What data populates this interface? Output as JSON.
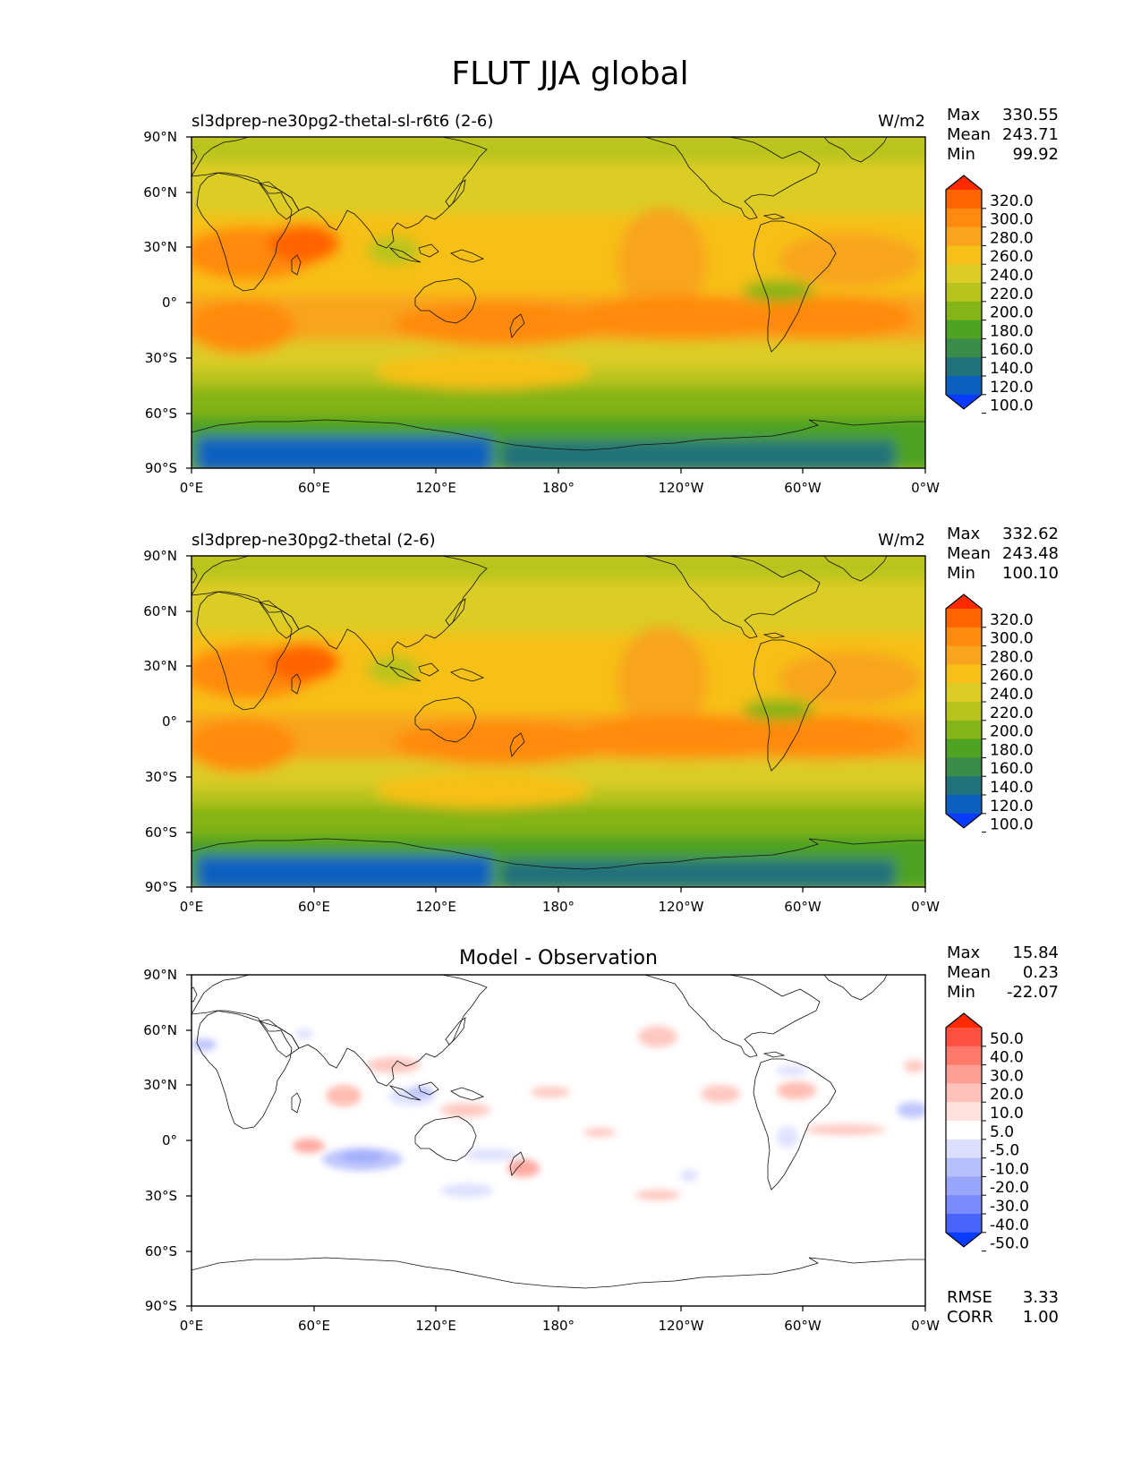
{
  "figure_title": "FLUT JJA global",
  "chart_data": [
    {
      "type": "heatmap",
      "title_left": "sl3dprep-ne30pg2-thetal-sl-r6t6 (2-6)",
      "units": "W/m2",
      "stats": [
        [
          "Max",
          "330.55"
        ],
        [
          "Mean",
          "243.71"
        ],
        [
          "Min",
          "99.92"
        ]
      ],
      "colorbar": {
        "levels": [
          "320.0",
          "300.0",
          "280.0",
          "260.0",
          "240.0",
          "220.0",
          "200.0",
          "180.0",
          "160.0",
          "140.0",
          "120.0",
          "100.0"
        ],
        "colors": [
          "#ff2a00",
          "#ff6400",
          "#ff8a10",
          "#f8a41e",
          "#f7c018",
          "#dccc26",
          "#b8c41e",
          "#84b418",
          "#4ea224",
          "#3a8c4a",
          "#22727a",
          "#0b60c0",
          "#0a3cff"
        ]
      },
      "x_ticks": [
        "0°E",
        "60°E",
        "120°E",
        "180°",
        "120°W",
        "60°W",
        "0°W"
      ],
      "y_ticks": [
        "90°N",
        "60°N",
        "30°N",
        "0°",
        "30°S",
        "60°S",
        "90°S"
      ],
      "xlim": [
        0,
        360
      ],
      "ylim": [
        -90,
        90
      ]
    },
    {
      "type": "heatmap",
      "title_left": "sl3dprep-ne30pg2-thetal (2-6)",
      "units": "W/m2",
      "stats": [
        [
          "Max",
          "332.62"
        ],
        [
          "Mean",
          "243.48"
        ],
        [
          "Min",
          "100.10"
        ]
      ],
      "colorbar": {
        "levels": [
          "320.0",
          "300.0",
          "280.0",
          "260.0",
          "240.0",
          "220.0",
          "200.0",
          "180.0",
          "160.0",
          "140.0",
          "120.0",
          "100.0"
        ],
        "colors": [
          "#ff2a00",
          "#ff6400",
          "#ff8a10",
          "#f8a41e",
          "#f7c018",
          "#dccc26",
          "#b8c41e",
          "#84b418",
          "#4ea224",
          "#3a8c4a",
          "#22727a",
          "#0b60c0",
          "#0a3cff"
        ]
      },
      "x_ticks": [
        "0°E",
        "60°E",
        "120°E",
        "180°",
        "120°W",
        "60°W",
        "0°W"
      ],
      "y_ticks": [
        "90°N",
        "60°N",
        "30°N",
        "0°",
        "30°S",
        "60°S",
        "90°S"
      ],
      "xlim": [
        0,
        360
      ],
      "ylim": [
        -90,
        90
      ]
    },
    {
      "type": "heatmap",
      "title_center": "Model - Observation",
      "stats": [
        [
          "Max",
          "15.84"
        ],
        [
          "Mean",
          "0.23"
        ],
        [
          "Min",
          "-22.07"
        ]
      ],
      "colorbar": {
        "levels": [
          "50.0",
          "40.0",
          "30.0",
          "20.0",
          "10.0",
          "5.0",
          "-5.0",
          "-10.0",
          "-20.0",
          "-30.0",
          "-40.0",
          "-50.0"
        ],
        "colors": [
          "#ff2a00",
          "#ff5040",
          "#ff7a6a",
          "#ffa096",
          "#ffc2ba",
          "#ffe2de",
          "#ffffff",
          "#dcdffe",
          "#b8c0fc",
          "#9aa6fb",
          "#7a8afa",
          "#4a64fb",
          "#0a3cff"
        ]
      },
      "x_ticks": [
        "0°E",
        "60°E",
        "120°E",
        "180°",
        "120°W",
        "60°W",
        "0°W"
      ],
      "y_ticks": [
        "90°N",
        "60°N",
        "30°N",
        "0°",
        "30°S",
        "60°S",
        "90°S"
      ],
      "xlim": [
        0,
        360
      ],
      "ylim": [
        -90,
        90
      ],
      "footer_stats": [
        [
          "RMSE",
          "3.33"
        ],
        [
          "CORR",
          "1.00"
        ]
      ]
    }
  ]
}
